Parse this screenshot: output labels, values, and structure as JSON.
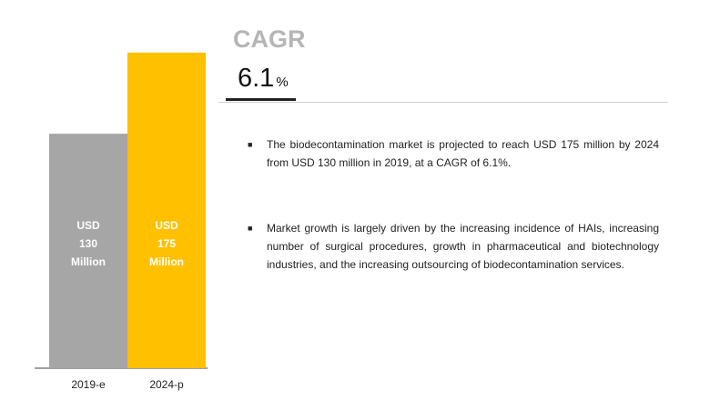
{
  "chart_data": {
    "type": "bar",
    "categories": [
      "2019-e",
      "2024-p"
    ],
    "values": [
      130,
      175
    ],
    "bar_labels": [
      [
        "USD",
        "130",
        "Million"
      ],
      [
        "USD",
        "175",
        "Million"
      ]
    ],
    "colors": [
      "#a6a6a6",
      "#ffc000"
    ],
    "label_color": "#ffffff",
    "axis_color": "#404040",
    "title": "",
    "xlabel": "",
    "ylabel": "",
    "ylim": [
      0,
      185
    ],
    "grid": false
  },
  "cagr": {
    "title": "CAGR",
    "value": "6.1",
    "unit": "%"
  },
  "bullets": [
    {
      "mark": "■",
      "text": "The biodecontamination market is projected to reach USD 175 million by 2024 from USD 130 million in 2019, at a CAGR of 6.1%."
    },
    {
      "mark": "■",
      "text": "Market growth is largely driven by the increasing incidence of HAIs, increasing number of surgical procedures, growth in pharmaceutical and biotechnology industries, and the increasing outsourcing of biodecontamination services."
    }
  ]
}
